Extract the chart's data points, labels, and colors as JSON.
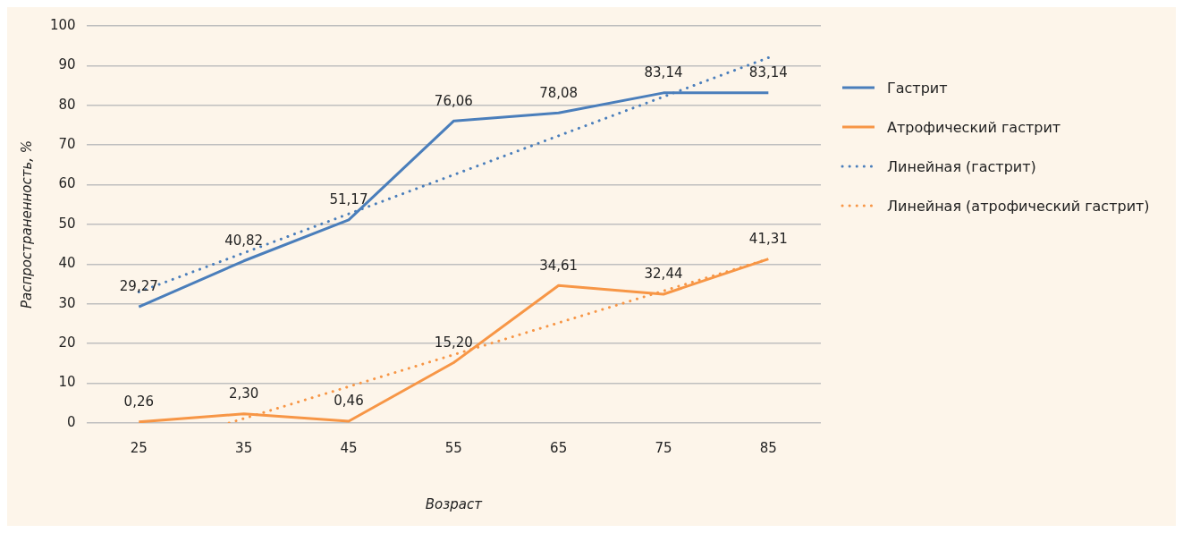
{
  "chart_data": {
    "type": "line",
    "xlabel": "Возраст",
    "ylabel": "Распространенность, %",
    "x": [
      25,
      35,
      45,
      55,
      65,
      75,
      85
    ],
    "xlim": [
      20,
      90
    ],
    "xticks": [
      25,
      35,
      45,
      55,
      65,
      75,
      85
    ],
    "ylim": [
      0,
      100
    ],
    "yticks": [
      0,
      10,
      20,
      30,
      40,
      50,
      60,
      70,
      80,
      90,
      100
    ],
    "grid": "y",
    "legend": "right",
    "marker": "none",
    "series": [
      {
        "name": "Гастрит",
        "color": "#4a7ebb",
        "values": [
          29.27,
          40.82,
          51.17,
          76.06,
          78.08,
          83.14,
          83.14
        ],
        "value_labels": [
          "29,27",
          "40,82",
          "51,17",
          "76,06",
          "78,08",
          "83,14",
          "83,14"
        ]
      },
      {
        "name": "Атрофический гастрит",
        "color": "#f79646",
        "values": [
          0.26,
          2.3,
          0.46,
          15.2,
          34.61,
          32.44,
          41.31
        ],
        "value_labels": [
          "0,26",
          "2,30",
          "0,46",
          "15,20",
          "34,61",
          "32,44",
          "41,31"
        ]
      },
      {
        "name": "Линейная (гастрит)",
        "color": "#4a7ebb",
        "line_style": "dotted",
        "x": [
          25,
          85
        ],
        "values": [
          33,
          92
        ]
      },
      {
        "name": "Линейная (атрофический гастрит)",
        "color": "#f79646",
        "line_style": "dotted",
        "x": [
          33.6,
          85
        ],
        "values": [
          0,
          41.3
        ]
      }
    ]
  }
}
